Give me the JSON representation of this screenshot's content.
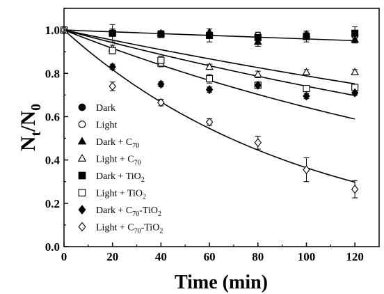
{
  "chart_data": {
    "type": "scatter",
    "xlabel": "Time (min)",
    "ylabel_main": "N",
    "ylabel_sub1": "t",
    "ylabel_mid": "/N",
    "ylabel_sub2": "0",
    "xlim": [
      0,
      130
    ],
    "ylim": [
      0,
      1.1
    ],
    "xticks": [
      0,
      20,
      40,
      60,
      80,
      100,
      120
    ],
    "yticks": [
      0.0,
      0.2,
      0.4,
      0.6,
      0.8,
      1.0
    ],
    "xtick_labels": [
      "0",
      "20",
      "40",
      "60",
      "80",
      "100",
      "120"
    ],
    "ytick_labels": [
      "0.0",
      "0.2",
      "0.4",
      "0.6",
      "0.8",
      "1.0"
    ],
    "grid": false,
    "legend_position": "bottom-left",
    "x": [
      0,
      20,
      40,
      60,
      80,
      100,
      120
    ],
    "series": [
      {
        "name": {
          "main": "Dark",
          "sub": "",
          "tail": ""
        },
        "marker": "circle",
        "filled": true,
        "y": [
          1.0,
          0.985,
          0.98,
          0.975,
          0.97,
          0.975,
          0.975
        ],
        "err": [
          0.01,
          0.012,
          0.01,
          0.012,
          0.015,
          0.012,
          0.012
        ]
      },
      {
        "name": {
          "main": "Light",
          "sub": "",
          "tail": ""
        },
        "marker": "circle",
        "filled": false,
        "y": [
          1.0,
          0.985,
          0.98,
          0.975,
          0.975,
          0.975,
          0.975
        ],
        "err": [
          0.01,
          0.012,
          0.01,
          0.012,
          0.015,
          0.012,
          0.012
        ]
      },
      {
        "name": {
          "main": "Dark + C",
          "sub": "70",
          "tail": ""
        },
        "marker": "triangle",
        "filled": true,
        "y": [
          1.0,
          0.99,
          0.985,
          0.99,
          0.945,
          0.98,
          0.955
        ],
        "err": [
          0.01,
          0.015,
          0.012,
          0.015,
          0.02,
          0.015,
          0.015
        ]
      },
      {
        "name": {
          "main": "Light + C",
          "sub": "70",
          "tail": ""
        },
        "marker": "triangle",
        "filled": false,
        "y": [
          1.0,
          0.915,
          0.845,
          0.83,
          0.795,
          0.805,
          0.805
        ],
        "err": [
          0.01,
          0.015,
          0.015,
          0.012,
          0.015,
          0.012,
          0.012
        ]
      },
      {
        "name": {
          "main": "Dark + TiO",
          "sub": "2",
          "tail": ""
        },
        "marker": "square",
        "filled": true,
        "y": [
          1.0,
          0.985,
          0.98,
          0.975,
          0.965,
          0.97,
          0.985
        ],
        "err": [
          0.01,
          0.04,
          0.015,
          0.03,
          0.02,
          0.025,
          0.03
        ]
      },
      {
        "name": {
          "main": "Light + TiO",
          "sub": "2",
          "tail": ""
        },
        "marker": "square",
        "filled": false,
        "y": [
          1.0,
          0.905,
          0.86,
          0.775,
          0.745,
          0.73,
          0.735
        ],
        "err": [
          0.01,
          0.015,
          0.02,
          0.02,
          0.015,
          0.012,
          0.012
        ]
      },
      {
        "name": {
          "main": "Dark + C",
          "sub": "70",
          "tail": "-TiO",
          "sub2": "2"
        },
        "marker": "diamond",
        "filled": true,
        "y": [
          1.0,
          0.83,
          0.75,
          0.725,
          0.745,
          0.695,
          0.71
        ],
        "err": [
          0.01,
          0.012,
          0.012,
          0.012,
          0.012,
          0.012,
          0.012
        ]
      },
      {
        "name": {
          "main": "Light + C",
          "sub": "70",
          "tail": "-TiO",
          "sub2": "2"
        },
        "marker": "diamond",
        "filled": false,
        "y": [
          1.0,
          0.74,
          0.665,
          0.575,
          0.48,
          0.355,
          0.265
        ],
        "err": [
          0.01,
          0.02,
          0.015,
          0.015,
          0.03,
          0.055,
          0.04
        ]
      }
    ],
    "fit_lines": [
      {
        "k": 0.00042
      },
      {
        "k": 0.00238
      },
      {
        "k": 0.003
      },
      {
        "k": 0.00441
      },
      {
        "k": 0.0101
      }
    ]
  }
}
